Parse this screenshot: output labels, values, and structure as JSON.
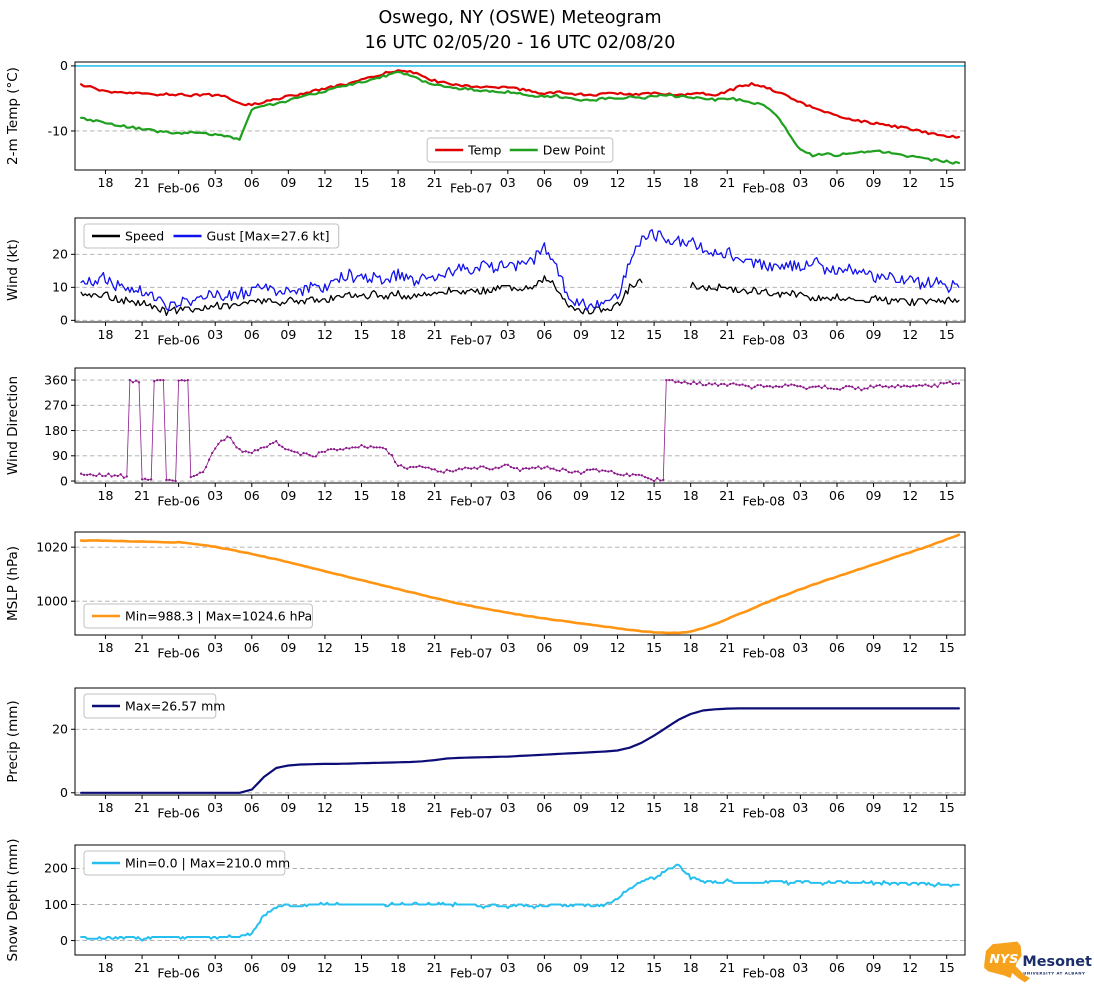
{
  "title": {
    "line1": "Oswego, NY (OSWE) Meteogram",
    "line2": "16 UTC 02/05/20 - 16 UTC 02/08/20"
  },
  "x_axis": {
    "xlim": [
      -0.5,
      72.5
    ],
    "ticks": [
      {
        "h": 2,
        "label": "18"
      },
      {
        "h": 5,
        "label": "21"
      },
      {
        "h": 8,
        "label": "Feb-06",
        "date": true
      },
      {
        "h": 11,
        "label": "03"
      },
      {
        "h": 14,
        "label": "06"
      },
      {
        "h": 17,
        "label": "09"
      },
      {
        "h": 20,
        "label": "12"
      },
      {
        "h": 23,
        "label": "15"
      },
      {
        "h": 26,
        "label": "18"
      },
      {
        "h": 29,
        "label": "21"
      },
      {
        "h": 32,
        "label": "Feb-07",
        "date": true
      },
      {
        "h": 35,
        "label": "03"
      },
      {
        "h": 38,
        "label": "06"
      },
      {
        "h": 41,
        "label": "09"
      },
      {
        "h": 44,
        "label": "12"
      },
      {
        "h": 47,
        "label": "15"
      },
      {
        "h": 50,
        "label": "18"
      },
      {
        "h": 53,
        "label": "21"
      },
      {
        "h": 56,
        "label": "Feb-08",
        "date": true
      },
      {
        "h": 59,
        "label": "03"
      },
      {
        "h": 62,
        "label": "06"
      },
      {
        "h": 65,
        "label": "09"
      },
      {
        "h": 68,
        "label": "12"
      },
      {
        "h": 71,
        "label": "15"
      }
    ]
  },
  "chart_data": [
    {
      "id": "temp",
      "type": "line",
      "ylabel": "2-m Temp (°C)",
      "ylim": [
        -16,
        0.6
      ],
      "yticks": [
        0,
        -10
      ],
      "grid": true,
      "ref_line": {
        "value": 0,
        "color": "#2fc1ea"
      },
      "legend": {
        "loc": "lower-center",
        "entries": [
          {
            "label": "Temp",
            "color": "#e00000"
          },
          {
            "label": "Dew Point",
            "color": "#1fa01f"
          }
        ]
      },
      "series": [
        {
          "name": "Temp",
          "color": "#e00000",
          "lw": 2.2,
          "noise": 0.18,
          "sub": 4,
          "values": [
            -3.0,
            -3.3,
            -4.0,
            -4.2,
            -4.1,
            -4.3,
            -4.4,
            -4.3,
            -4.4,
            -4.5,
            -4.4,
            -4.5,
            -4.8,
            -5.8,
            -6.0,
            -5.5,
            -5.1,
            -4.7,
            -4.3,
            -3.9,
            -3.5,
            -3.1,
            -2.7,
            -2.2,
            -1.7,
            -1.1,
            -0.6,
            -0.9,
            -1.6,
            -2.3,
            -2.7,
            -2.9,
            -3.1,
            -3.3,
            -3.4,
            -3.3,
            -3.6,
            -3.9,
            -4.2,
            -4.0,
            -4.3,
            -4.4,
            -4.5,
            -4.3,
            -4.2,
            -4.3,
            -4.4,
            -4.2,
            -4.3,
            -4.4,
            -4.3,
            -4.2,
            -4.4,
            -3.9,
            -3.2,
            -2.8,
            -3.1,
            -3.9,
            -4.7,
            -5.6,
            -6.4,
            -7.1,
            -7.7,
            -8.1,
            -8.5,
            -8.8,
            -9.1,
            -9.4,
            -9.7,
            -10.1,
            -10.5,
            -10.8,
            -11.0
          ]
        },
        {
          "name": "Dew Point",
          "color": "#1fa01f",
          "lw": 2.2,
          "noise": 0.18,
          "sub": 4,
          "values": [
            -8.0,
            -8.4,
            -8.7,
            -9.1,
            -9.4,
            -9.7,
            -10.0,
            -10.2,
            -10.3,
            -10.2,
            -10.4,
            -10.5,
            -10.9,
            -11.4,
            -6.6,
            -6.2,
            -5.8,
            -5.3,
            -4.8,
            -4.3,
            -3.9,
            -3.4,
            -3.0,
            -2.5,
            -2.0,
            -1.5,
            -1.0,
            -1.5,
            -2.3,
            -2.9,
            -3.2,
            -3.5,
            -3.6,
            -3.8,
            -4.0,
            -4.0,
            -4.3,
            -4.5,
            -4.8,
            -4.6,
            -5.0,
            -5.2,
            -5.3,
            -5.0,
            -4.9,
            -4.8,
            -5.0,
            -4.6,
            -4.5,
            -4.7,
            -4.8,
            -5.0,
            -5.2,
            -5.0,
            -5.2,
            -5.6,
            -6.1,
            -7.6,
            -10.2,
            -13.0,
            -13.8,
            -13.5,
            -13.8,
            -13.4,
            -13.2,
            -13.0,
            -13.3,
            -13.6,
            -13.9,
            -14.2,
            -14.5,
            -14.7,
            -15.0
          ]
        }
      ]
    },
    {
      "id": "wind",
      "type": "line",
      "ylabel": "Wind (kt)",
      "ylim": [
        -0.5,
        31
      ],
      "yticks": [
        0,
        10,
        20
      ],
      "grid": true,
      "legend": {
        "loc": "upper-left",
        "entries": [
          {
            "label": "Speed",
            "color": "#000000"
          },
          {
            "label": "Gust [Max=27.6 kt]",
            "color": "#1212ee"
          }
        ]
      },
      "series": [
        {
          "name": "Speed",
          "color": "#000000",
          "lw": 1.3,
          "noise": 1.0,
          "sub": 6,
          "quant": 0.5,
          "clamp": [
            0,
            31
          ],
          "values": [
            8,
            7,
            8,
            6,
            6,
            5,
            4,
            2.5,
            3,
            3.5,
            4,
            4.5,
            4,
            5,
            5.5,
            6,
            5,
            6,
            5.5,
            6,
            6,
            7,
            7.5,
            7,
            8,
            7.5,
            8,
            7,
            8,
            8.5,
            9,
            9,
            8.5,
            9,
            9.5,
            10,
            9,
            10,
            13,
            10,
            4,
            3,
            3,
            3.5,
            4.5,
            10,
            12,
            null,
            null,
            null,
            11,
            10,
            10,
            9.5,
            9,
            9,
            8.5,
            8,
            8,
            7.5,
            7,
            7,
            7,
            6.5,
            6,
            6.5,
            6,
            6,
            5.5,
            6,
            5.5,
            6,
            6
          ]
        },
        {
          "name": "Gust",
          "color": "#1212ee",
          "lw": 1.3,
          "noise": 1.8,
          "sub": 6,
          "quant": 0.5,
          "clamp": [
            0,
            30.5
          ],
          "values": [
            11,
            12,
            13,
            10,
            9,
            9,
            7,
            4.5,
            5,
            6,
            7,
            8,
            7,
            8,
            9,
            10,
            9,
            10,
            9,
            11,
            10,
            12,
            14,
            12,
            13,
            12,
            14,
            12,
            13,
            12,
            14,
            16,
            15,
            17,
            16,
            18,
            16,
            18,
            22,
            17,
            6,
            5,
            5,
            5.5,
            7,
            18,
            24,
            26,
            25,
            24,
            24,
            22,
            20,
            21,
            18,
            17,
            17,
            16,
            17,
            16,
            18,
            16,
            15,
            16,
            14,
            13,
            13,
            12,
            12,
            11,
            12,
            10,
            10
          ]
        }
      ]
    },
    {
      "id": "winddir",
      "type": "scatter",
      "ylabel": "Wind Direction",
      "ylim": [
        -7,
        403
      ],
      "yticks": [
        0,
        90,
        180,
        270,
        360
      ],
      "grid": true,
      "series": [
        {
          "name": "Direction",
          "color": "#8b1a8b",
          "lw": 0.8,
          "noise": 6,
          "sub": 4,
          "quant": 2,
          "clamp": [
            0,
            360
          ],
          "marker": true,
          "wrap": 180,
          "values": [
            25,
            20,
            22,
            18,
            355,
            8,
            358,
            5,
            357,
            20,
            30,
            120,
            160,
            110,
            100,
            120,
            140,
            110,
            95,
            90,
            105,
            115,
            120,
            125,
            120,
            115,
            60,
            45,
            50,
            40,
            35,
            45,
            40,
            50,
            45,
            55,
            40,
            45,
            50,
            40,
            35,
            30,
            40,
            35,
            28,
            22,
            18,
            5,
            358,
            352,
            350,
            347,
            342,
            345,
            340,
            336,
            340,
            336,
            340,
            335,
            332,
            335,
            330,
            334,
            330,
            336,
            340,
            336,
            341,
            344,
            340,
            350,
            346
          ]
        }
      ]
    },
    {
      "id": "mslp",
      "type": "line",
      "ylabel": "MSLP (hPa)",
      "ylim": [
        987.5,
        1025.6
      ],
      "yticks": [
        1000,
        1020
      ],
      "grid": true,
      "legend": {
        "loc": "lower-left",
        "entries": [
          {
            "label": "Min=988.3 | Max=1024.6 hPa",
            "color": "#ff9512"
          }
        ]
      },
      "series": [
        {
          "name": "MSLP",
          "color": "#ff9512",
          "lw": 2.6,
          "noise": 0.1,
          "sub": 3,
          "values": [
            1022.4,
            1022.5,
            1022.4,
            1022.3,
            1022.2,
            1022.1,
            1021.9,
            1021.7,
            1021.8,
            1021.4,
            1020.8,
            1020.1,
            1019.3,
            1018.4,
            1017.5,
            1016.5,
            1015.5,
            1014.4,
            1013.3,
            1012.2,
            1011.1,
            1010.0,
            1008.9,
            1007.8,
            1006.7,
            1005.6,
            1004.5,
            1003.4,
            1002.3,
            1001.2,
            1000.1,
            999.1,
            998.2,
            997.3,
            996.5,
            995.7,
            995.0,
            994.3,
            993.6,
            993.0,
            992.4,
            991.8,
            991.2,
            990.6,
            990.0,
            989.4,
            988.9,
            988.5,
            988.3,
            988.3,
            988.8,
            990.0,
            991.6,
            993.4,
            995.3,
            997.2,
            999.1,
            1001.0,
            1002.7,
            1004.4,
            1006.0,
            1007.6,
            1009.1,
            1010.6,
            1012.1,
            1013.6,
            1015.1,
            1016.6,
            1018.1,
            1019.6,
            1021.2,
            1022.9,
            1024.6
          ]
        }
      ]
    },
    {
      "id": "precip",
      "type": "line",
      "ylabel": "Precip (mm)",
      "ylim": [
        -0.7,
        33
      ],
      "yticks": [
        0,
        20
      ],
      "grid": true,
      "legend": {
        "loc": "upper-left",
        "entries": [
          {
            "label": "Max=26.57 mm",
            "color": "#0d0d78"
          }
        ]
      },
      "series": [
        {
          "name": "Precip",
          "color": "#0d0d78",
          "lw": 2.2,
          "noise": 0,
          "sub": 2,
          "values": [
            0,
            0,
            0,
            0,
            0,
            0,
            0,
            0,
            0,
            0,
            0,
            0,
            0,
            0,
            1.0,
            5.0,
            7.8,
            8.6,
            8.9,
            9.0,
            9.1,
            9.1,
            9.2,
            9.3,
            9.4,
            9.5,
            9.6,
            9.7,
            9.9,
            10.3,
            10.8,
            11.0,
            11.1,
            11.2,
            11.3,
            11.4,
            11.6,
            11.8,
            12.0,
            12.2,
            12.4,
            12.6,
            12.8,
            13.0,
            13.3,
            14.2,
            15.8,
            18.0,
            20.5,
            23.0,
            24.8,
            25.9,
            26.3,
            26.5,
            26.57,
            26.57,
            26.57,
            26.57,
            26.57,
            26.57,
            26.57,
            26.57,
            26.57,
            26.57,
            26.57,
            26.57,
            26.57,
            26.57,
            26.57,
            26.57,
            26.57,
            26.57,
            26.57
          ]
        }
      ]
    },
    {
      "id": "snow",
      "type": "line",
      "ylabel": "Snow Depth (mm)",
      "ylim": [
        -40,
        265
      ],
      "yticks": [
        0,
        100,
        200
      ],
      "grid": true,
      "legend": {
        "loc": "upper-left",
        "entries": [
          {
            "label": "Min=0.0 | Max=210.0 mm",
            "color": "#25c0f0"
          }
        ]
      },
      "series": [
        {
          "name": "Snow Depth",
          "color": "#25c0f0",
          "lw": 2.0,
          "noise": 3,
          "sub": 6,
          "quant": 5,
          "clamp": [
            0,
            260
          ],
          "values": [
            10,
            5,
            10,
            8,
            10,
            5,
            10,
            8,
            10,
            8,
            10,
            8,
            10,
            10,
            20,
            70,
            95,
            100,
            95,
            100,
            100,
            100,
            100,
            100,
            100,
            100,
            100,
            100,
            100,
            100,
            100,
            100,
            100,
            95,
            100,
            95,
            100,
            95,
            95,
            100,
            95,
            100,
            95,
            100,
            115,
            145,
            165,
            175,
            195,
            210,
            175,
            165,
            160,
            165,
            160,
            162,
            160,
            165,
            160,
            162,
            160,
            160,
            162,
            160,
            160,
            160,
            160,
            160,
            158,
            157,
            155,
            155,
            155
          ]
        }
      ]
    }
  ],
  "logo": {
    "nys": "NYS",
    "mesonet": "Mesonet",
    "subtext": "UNIVERSITY AT ALBANY"
  }
}
